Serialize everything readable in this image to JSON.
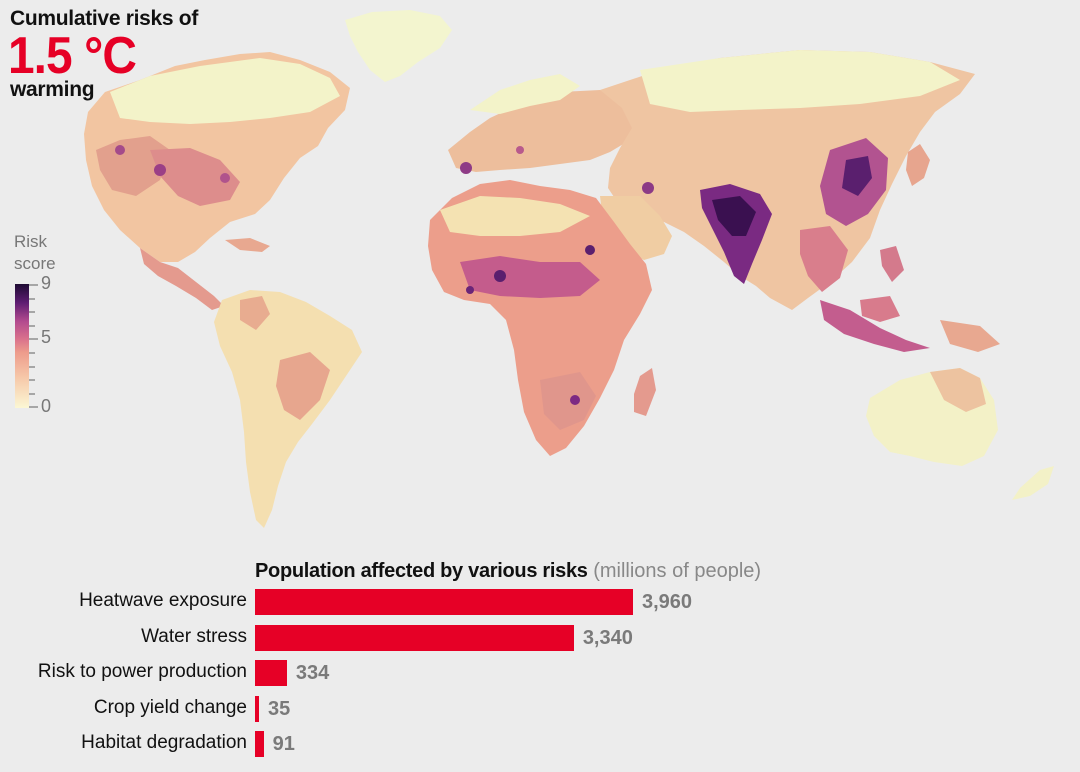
{
  "title": {
    "line1": "Cumulative risks of",
    "highlight": "1.5 °C",
    "line3": "warming"
  },
  "legend": {
    "title_line1": "Risk",
    "title_line2": "score",
    "ticks": [
      "9",
      "5",
      "0"
    ],
    "scale_min": 0,
    "scale_max": 9,
    "colors": [
      "#fbf7d4",
      "#f6c7a8",
      "#ed9b8b",
      "#d9708c",
      "#b24a8e",
      "#7d2a83",
      "#4a1668",
      "#1e0b33"
    ]
  },
  "map": {
    "background": "#ececec"
  },
  "chart_data": {
    "type": "bar",
    "orientation": "horizontal",
    "title": "Population affected by various risks",
    "unit": "(millions of people)",
    "categories": [
      "Heatwave exposure",
      "Water stress",
      "Risk to power production",
      "Crop yield change",
      "Habitat degradation"
    ],
    "values": [
      3960,
      3340,
      334,
      35,
      91
    ],
    "value_labels": [
      "3,960",
      "3,340",
      "334",
      "35",
      "91"
    ],
    "bar_color": "#e60026",
    "xlim": [
      0,
      3960
    ]
  }
}
